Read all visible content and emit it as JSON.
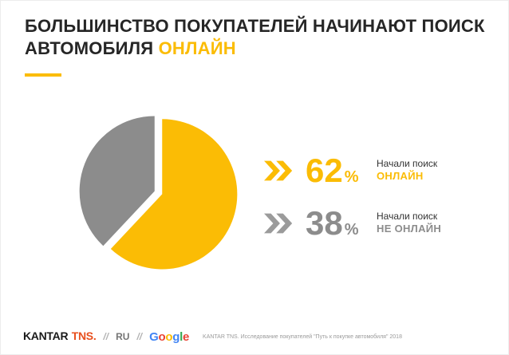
{
  "colors": {
    "accent_yellow": "#FBBC05",
    "gray": "#8c8c8c",
    "title_text": "#262626",
    "tns_red": "#E8501E"
  },
  "title": {
    "line1": "БОЛЬШИНСТВО ПОКУПАТЕЛЕЙ НАЧИНАЮТ ПОИСК",
    "line2_prefix": "АВТОМОБИЛЯ ",
    "line2_highlight": "ОНЛАЙН"
  },
  "chart_data": {
    "type": "pie",
    "title": "БОЛЬШИНСТВО ПОКУПАТЕЛЕЙ НАЧИНАЮТ ПОИСК АВТОМОБИЛЯ ОНЛАЙН",
    "labels": [
      "Начали поиск ОНЛАЙН",
      "Начали поиск НЕ ОНЛАЙН"
    ],
    "values": [
      62,
      38
    ],
    "colors": [
      "#FBBC05",
      "#8c8c8c"
    ],
    "start_angle_deg": 0,
    "exploded": true,
    "legend_position": "right"
  },
  "stats": [
    {
      "icon": "double-chevron-right-icon",
      "value": "62",
      "unit": "%",
      "line1": "Начали поиск",
      "line2": "ОНЛАЙН",
      "color": "#FBBC05"
    },
    {
      "icon": "double-chevron-right-icon",
      "value": "38",
      "unit": "%",
      "line1": "Начали поиск",
      "line2": "НЕ ОНЛАЙН",
      "color": "#8c8c8c"
    }
  ],
  "footer": {
    "kantar": "KANTAR",
    "tns": "TNS.",
    "sep1": "//",
    "locale": "RU",
    "sep2": "//",
    "google": {
      "letters": [
        "G",
        "o",
        "o",
        "g",
        "l",
        "e"
      ],
      "letter_colors": [
        "#4285F4",
        "#EA4335",
        "#FBBC05",
        "#4285F4",
        "#34A853",
        "#EA4335"
      ]
    },
    "source": "KANTAR TNS. Исследование покупателей \"Путь к покупке автомобиля\" 2018"
  }
}
